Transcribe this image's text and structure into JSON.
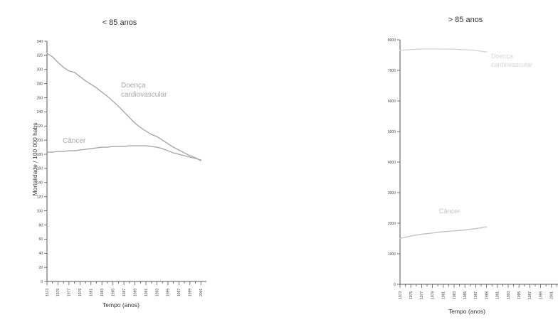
{
  "chart_data": [
    {
      "type": "line",
      "title": "< 85 anos",
      "xlabel": "Tempo (anos)",
      "ylabel": "Mortalidade / 100 000 habs",
      "ylim": [
        0,
        340
      ],
      "yticks": [
        0,
        20,
        40,
        60,
        80,
        100,
        120,
        140,
        160,
        180,
        200,
        220,
        240,
        260,
        280,
        300,
        320,
        340
      ],
      "xticks": [
        "1973",
        "1975",
        "1977",
        "1979",
        "1981",
        "1983",
        "1985",
        "1987",
        "1989",
        "1991",
        "1993",
        "1995",
        "1997",
        "1999",
        "2001"
      ],
      "x": [
        1973,
        1974,
        1975,
        1976,
        1977,
        1978,
        1979,
        1980,
        1981,
        1982,
        1983,
        1984,
        1985,
        1986,
        1987,
        1988,
        1989,
        1990,
        1991,
        1992,
        1993,
        1994,
        1995,
        1996,
        1997,
        1998,
        1999,
        2000,
        2001
      ],
      "series": [
        {
          "name": "Doença cardiovascular",
          "label_lines": [
            "Doença",
            "cardiovascular"
          ],
          "color": "#a8a8a8",
          "values": [
            323,
            318,
            310,
            303,
            298,
            296,
            290,
            284,
            279,
            274,
            268,
            262,
            255,
            248,
            240,
            232,
            224,
            218,
            213,
            208,
            205,
            200,
            195,
            190,
            186,
            182,
            178,
            175,
            171
          ]
        },
        {
          "name": "Câncer",
          "label_lines": [
            "Câncer"
          ],
          "color": "#a8a8a8",
          "values": [
            183,
            183,
            184,
            184,
            185,
            185,
            186,
            187,
            188,
            189,
            190,
            190,
            191,
            191,
            191,
            192,
            192,
            192,
            192,
            191,
            190,
            188,
            185,
            182,
            180,
            178,
            176,
            174,
            172
          ]
        }
      ]
    },
    {
      "type": "line",
      "title": "> 85 anos",
      "xlabel": "Tempo (anos)",
      "ylabel": "",
      "ylim": [
        0,
        8000
      ],
      "yticks": [
        0,
        1000,
        2000,
        3000,
        4000,
        5000,
        6000,
        7000,
        8000
      ],
      "xticks": [
        "1973",
        "1975",
        "1977",
        "1979",
        "1981",
        "1983",
        "1985",
        "1987",
        "1989",
        "1991",
        "1993",
        "1995",
        "1997",
        "1999",
        "2001"
      ],
      "x_cardio": [
        1973,
        1975,
        1977,
        1979,
        1981,
        1983,
        1985,
        1987,
        1989
      ],
      "x_cancer": [
        1973,
        1975,
        1977,
        1979,
        1981,
        1983,
        1985,
        1987,
        1989
      ],
      "series": [
        {
          "name": "Doença cardiovascular",
          "label_lines": [
            "Doença",
            "cardiovascular"
          ],
          "color": "#d6d6d6",
          "values": [
            7650,
            7680,
            7700,
            7700,
            7700,
            7690,
            7680,
            7650,
            7600
          ]
        },
        {
          "name": "Câncer",
          "label_lines": [
            "Câncer"
          ],
          "color": "#c4c4c4",
          "values": [
            1500,
            1580,
            1640,
            1680,
            1720,
            1750,
            1780,
            1820,
            1880
          ]
        }
      ]
    }
  ]
}
